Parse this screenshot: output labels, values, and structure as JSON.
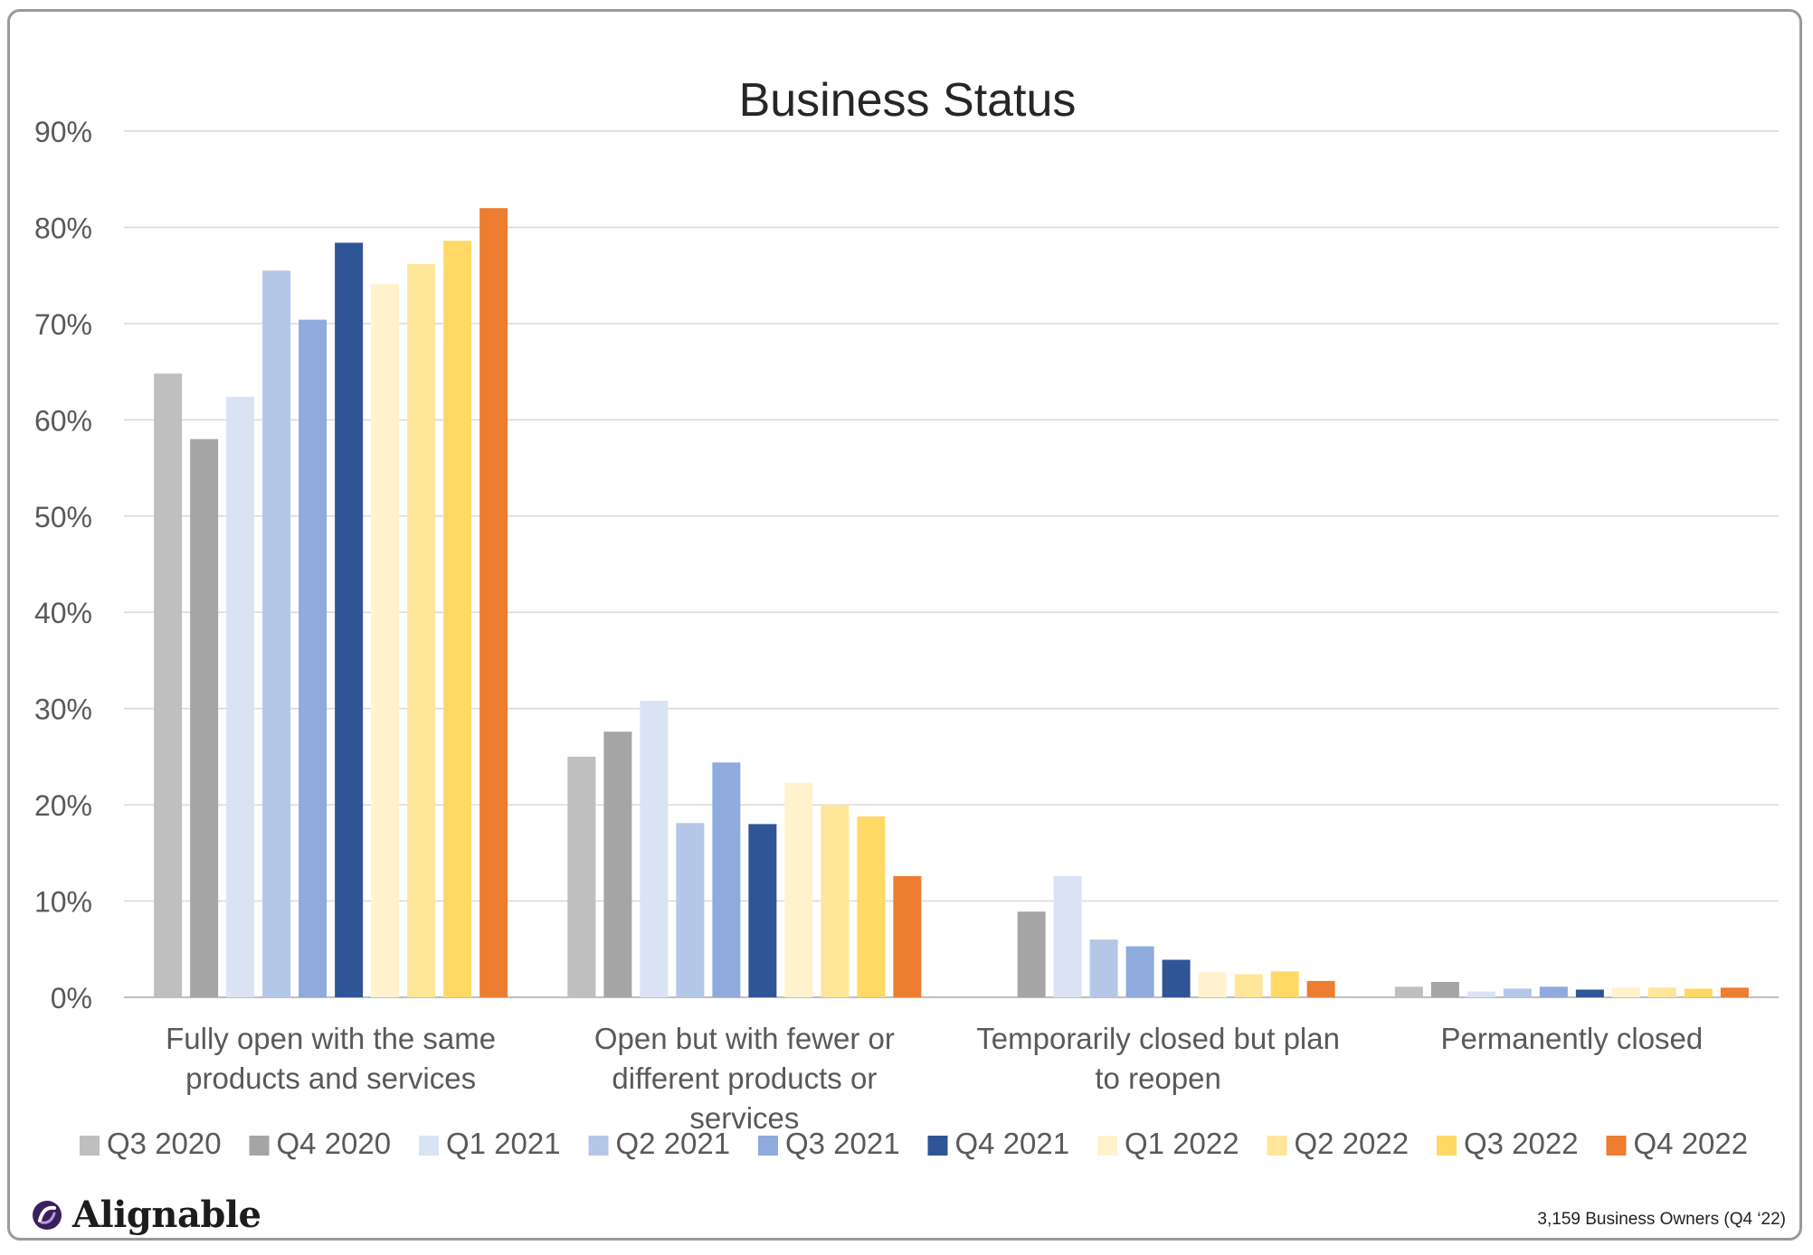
{
  "chart_data": {
    "type": "bar",
    "title": "Business Status",
    "xlabel": "",
    "ylabel": "",
    "ylim": [
      0,
      90
    ],
    "yticks": [
      "0%",
      "10%",
      "20%",
      "30%",
      "40%",
      "50%",
      "60%",
      "70%",
      "80%",
      "90%"
    ],
    "grid": true,
    "legend_position": "bottom",
    "categories": [
      "Fully open with the same products and services",
      "Open but with fewer or different products or services",
      "Temporarily closed but plan to reopen",
      "Permanently closed"
    ],
    "series": [
      {
        "name": "Q3 2020",
        "color": "#bfbfbf",
        "values": [
          64.8,
          25.0,
          0.0,
          1.1
        ]
      },
      {
        "name": "Q4 2020",
        "color": "#a5a5a5",
        "values": [
          58.0,
          27.6,
          8.9,
          1.6
        ]
      },
      {
        "name": "Q1 2021",
        "color": "#dae3f3",
        "values": [
          62.4,
          30.8,
          12.6,
          0.6
        ]
      },
      {
        "name": "Q2 2021",
        "color": "#b4c7e7",
        "values": [
          75.5,
          18.1,
          6.0,
          0.9
        ]
      },
      {
        "name": "Q3 2021",
        "color": "#8faadc",
        "values": [
          70.4,
          24.4,
          5.3,
          1.1
        ]
      },
      {
        "name": "Q4 2021",
        "color": "#2f5597",
        "values": [
          78.4,
          18.0,
          3.9,
          0.8
        ]
      },
      {
        "name": "Q1 2022",
        "color": "#fff2cc",
        "values": [
          74.1,
          22.3,
          2.6,
          1.0
        ]
      },
      {
        "name": "Q2 2022",
        "color": "#ffe699",
        "values": [
          76.2,
          20.0,
          2.4,
          1.0
        ]
      },
      {
        "name": "Q3 2022",
        "color": "#ffd966",
        "values": [
          78.6,
          18.8,
          2.7,
          0.9
        ]
      },
      {
        "name": "Q4 2022",
        "color": "#ed7d31",
        "values": [
          82.0,
          12.6,
          1.7,
          1.0
        ]
      }
    ]
  },
  "footer": {
    "brand": "Alignable",
    "note": "3,159 Business Owners (Q4 ‘22)"
  }
}
